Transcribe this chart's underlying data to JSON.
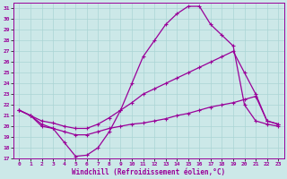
{
  "xlabel": "Windchill (Refroidissement éolien,°C)",
  "xlim": [
    -0.5,
    23.5
  ],
  "ylim": [
    17,
    31.5
  ],
  "yticks": [
    17,
    18,
    19,
    20,
    21,
    22,
    23,
    24,
    25,
    26,
    27,
    28,
    29,
    30,
    31
  ],
  "xticks": [
    0,
    1,
    2,
    3,
    4,
    5,
    6,
    7,
    8,
    9,
    10,
    11,
    12,
    13,
    14,
    15,
    16,
    17,
    18,
    19,
    20,
    21,
    22,
    23
  ],
  "bg_color": "#cce8e8",
  "line_color": "#990099",
  "grid_color": "#aad4d4",
  "series": [
    {
      "x": [
        0,
        1,
        2,
        3,
        4,
        5,
        6,
        7,
        8,
        9,
        10,
        11,
        12,
        13,
        14,
        15,
        16,
        17,
        18,
        19,
        20,
        21,
        22,
        23
      ],
      "y": [
        21.5,
        21.0,
        20.2,
        19.8,
        18.5,
        17.2,
        17.3,
        18.0,
        19.5,
        21.5,
        24.0,
        26.5,
        28.0,
        29.5,
        30.5,
        31.2,
        31.2,
        29.5,
        28.5,
        27.5,
        22.0,
        20.5,
        20.2,
        20.0
      ]
    },
    {
      "x": [
        0,
        1,
        2,
        3,
        4,
        5,
        6,
        7,
        8,
        9,
        10,
        11,
        12,
        13,
        14,
        15,
        16,
        17,
        18,
        19,
        20,
        21,
        22,
        23
      ],
      "y": [
        21.5,
        21.0,
        20.5,
        20.3,
        20.0,
        19.8,
        19.8,
        20.2,
        20.8,
        21.5,
        22.2,
        23.0,
        23.5,
        24.0,
        24.5,
        25.0,
        25.5,
        26.0,
        26.5,
        27.0,
        25.0,
        23.0,
        20.5,
        20.2
      ]
    },
    {
      "x": [
        0,
        1,
        2,
        3,
        4,
        5,
        6,
        7,
        8,
        9,
        10,
        11,
        12,
        13,
        14,
        15,
        16,
        17,
        18,
        19,
        20,
        21,
        22,
        23
      ],
      "y": [
        21.5,
        21.0,
        20.0,
        19.8,
        19.5,
        19.2,
        19.2,
        19.5,
        19.8,
        20.0,
        20.2,
        20.3,
        20.5,
        20.7,
        21.0,
        21.2,
        21.5,
        21.8,
        22.0,
        22.2,
        22.5,
        22.8,
        20.5,
        20.2
      ]
    }
  ]
}
